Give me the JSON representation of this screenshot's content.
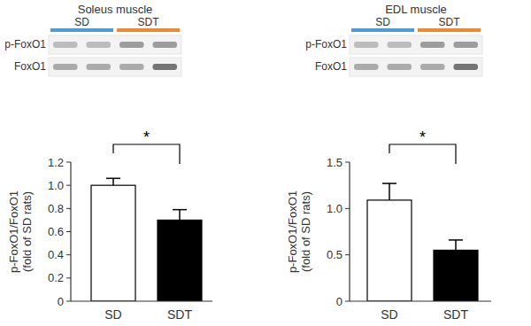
{
  "chart_data": [
    {
      "type": "bar",
      "ylabel": [
        "p-FoxO1/FoxO1",
        "(fold of SD rats)"
      ],
      "categories": [
        "SD",
        "SDT"
      ],
      "values": [
        1.0,
        0.7
      ],
      "errors": [
        0.06,
        0.09
      ],
      "colors": [
        "#ffffff",
        "#000000"
      ],
      "ylim": [
        0,
        1.2
      ],
      "yticks": [
        0,
        0.2,
        0.4,
        0.6,
        0.8,
        {
          "value": 1,
          "label": "1.0"
        },
        1.2
      ],
      "annotations": [
        "*"
      ]
    },
    {
      "type": "bar",
      "ylabel": [
        "p-FoxO1/FoxO1",
        "(fold of SD rats)"
      ],
      "categories": [
        "SD",
        "SDT"
      ],
      "values": [
        1.09,
        0.55
      ],
      "errors": [
        0.18,
        0.11
      ],
      "colors": [
        "#ffffff",
        "#000000"
      ],
      "ylim": [
        0,
        1.5
      ],
      "yticks": [
        0,
        0.5,
        {
          "value": 1,
          "label": "1.0"
        },
        1.5
      ],
      "annotations": [
        "*"
      ]
    }
  ],
  "blots": [
    {
      "title": "Soleus muscle",
      "groups": [
        {
          "label": "SD",
          "color": "#4a9bd6"
        },
        {
          "label": "SDT",
          "color": "#ef8a33"
        }
      ],
      "rows": [
        "p-FoxO1",
        "FoxO1"
      ]
    },
    {
      "title": "EDL muscle",
      "groups": [
        {
          "label": "SD",
          "color": "#4a9bd6"
        },
        {
          "label": "SDT",
          "color": "#ef8a33"
        }
      ],
      "rows": [
        "p-FoxO1",
        "FoxO1"
      ]
    }
  ]
}
